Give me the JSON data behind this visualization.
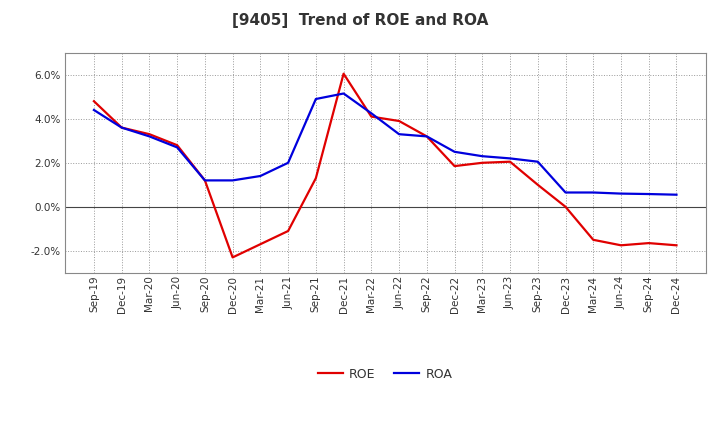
{
  "title": "[9405]  Trend of ROE and ROA",
  "x_labels": [
    "Sep-19",
    "Dec-19",
    "Mar-20",
    "Jun-20",
    "Sep-20",
    "Dec-20",
    "Mar-21",
    "Jun-21",
    "Sep-21",
    "Dec-21",
    "Mar-22",
    "Jun-22",
    "Sep-22",
    "Dec-22",
    "Mar-23",
    "Jun-23",
    "Sep-23",
    "Dec-23",
    "Mar-24",
    "Jun-24",
    "Sep-24",
    "Dec-24"
  ],
  "roe": [
    4.8,
    3.6,
    3.3,
    2.8,
    1.2,
    -2.3,
    -1.7,
    -1.1,
    1.3,
    6.05,
    4.1,
    3.9,
    3.2,
    1.85,
    2.0,
    2.05,
    1.0,
    0.0,
    -1.5,
    -1.75,
    -1.65,
    -1.75
  ],
  "roa": [
    4.4,
    3.6,
    3.2,
    2.7,
    1.2,
    1.2,
    1.4,
    2.0,
    4.9,
    5.15,
    4.25,
    3.3,
    3.2,
    2.5,
    2.3,
    2.2,
    2.05,
    0.65,
    0.65,
    0.6,
    0.58,
    0.55
  ],
  "roe_color": "#e00000",
  "roa_color": "#0000dd",
  "ylim": [
    -3.0,
    7.0
  ],
  "yticks": [
    -2.0,
    0.0,
    2.0,
    4.0,
    6.0
  ],
  "background_color": "#ffffff",
  "plot_bg_color": "#ffffff",
  "grid_color": "#999999",
  "spine_color": "#888888",
  "title_color": "#333333",
  "title_fontsize": 11,
  "legend_fontsize": 9,
  "tick_fontsize": 7.5
}
